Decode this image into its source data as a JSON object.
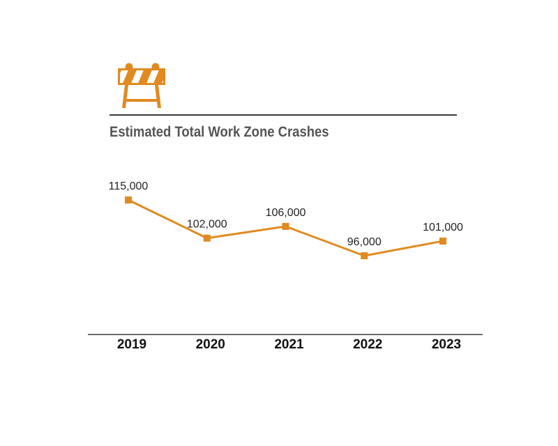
{
  "icon": "road-barricade-icon",
  "colors": {
    "accent": "#E08A20",
    "rule": "#3A3A3A",
    "title": "#555555"
  },
  "chart_data": {
    "type": "line",
    "title": "Estimated Total Work Zone Crashes",
    "xlabel": "",
    "ylabel": "",
    "categories": [
      "2019",
      "2020",
      "2021",
      "2022",
      "2023"
    ],
    "values": [
      115000,
      102000,
      106000,
      96000,
      101000
    ],
    "data_labels": [
      "115,000",
      "102,000",
      "106,000",
      "96,000",
      "101,000"
    ],
    "grid": false,
    "legend": "none"
  }
}
